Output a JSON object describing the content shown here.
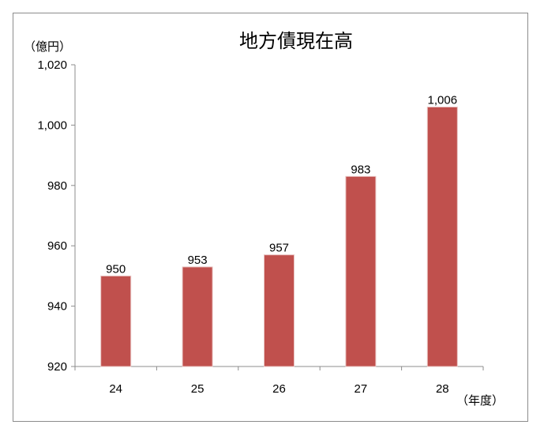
{
  "chart_data": {
    "type": "bar",
    "title": "地方債現在高",
    "ylabel": "（億円）",
    "xlabel": "（年度）",
    "categories": [
      "24",
      "25",
      "26",
      "27",
      "28"
    ],
    "values": [
      950,
      953,
      957,
      983,
      1006
    ],
    "data_labels": [
      "950",
      "953",
      "957",
      "983",
      "1,006"
    ],
    "ylim": [
      920,
      1020
    ],
    "yticks": [
      920,
      940,
      960,
      980,
      1000,
      1020
    ],
    "ytick_labels": [
      "920",
      "940",
      "960",
      "980",
      "1,000",
      "1,020"
    ],
    "grid": false,
    "legend": "none",
    "bar_color": "#c0504d"
  }
}
